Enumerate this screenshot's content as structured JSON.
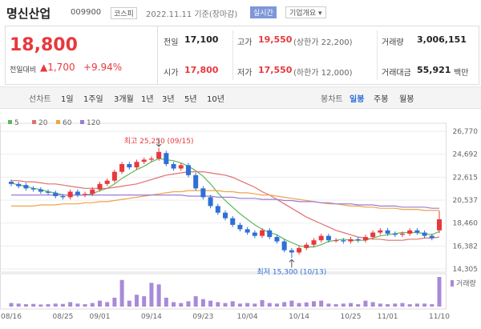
{
  "header": {
    "name": "명신산업",
    "code": "009900",
    "market": "코스피",
    "date": "2022.11.11 기준(장마감)",
    "realtime": "실시간",
    "company": "기업개요 ▾"
  },
  "quote": {
    "price": "18,800",
    "change_label": "전일대비",
    "change": "▲1,700",
    "change_pct": "+9.94%",
    "cells": [
      {
        "label": "전일",
        "value": "17,100"
      },
      {
        "label": "고가",
        "value": "19,550",
        "note": "(상한가 22,200)"
      },
      {
        "label": "거래량",
        "value": "3,006,151"
      },
      {
        "label": "시가",
        "value": "17,800"
      },
      {
        "label": "저가",
        "value": "17,550",
        "note": "(하한가 12,000)"
      },
      {
        "label": "거래대금",
        "value": "55,921",
        "unit": "백만"
      }
    ]
  },
  "tabs": {
    "line": [
      "선차트",
      "1일",
      "1주일",
      "3개월",
      "1년",
      "3년",
      "5년",
      "10년"
    ],
    "candle": [
      "봉차트",
      "일봉",
      "주봉",
      "월봉"
    ],
    "selected": "일봉"
  },
  "chart_data": {
    "type": "candlestick",
    "categories": [
      "08/16",
      null,
      null,
      null,
      null,
      null,
      null,
      "08/25",
      null,
      null,
      null,
      null,
      "09/01",
      null,
      null,
      null,
      null,
      null,
      null,
      "09/14",
      null,
      null,
      null,
      null,
      null,
      null,
      "09/23",
      null,
      null,
      null,
      null,
      null,
      "10/04",
      null,
      null,
      null,
      null,
      null,
      null,
      "10/14",
      null,
      null,
      null,
      null,
      null,
      null,
      "10/25",
      null,
      null,
      null,
      null,
      "11/01",
      null,
      null,
      null,
      null,
      null,
      null,
      "11/10"
    ],
    "open": [
      22200,
      22000,
      21900,
      21600,
      21500,
      21300,
      21200,
      20900,
      20800,
      21300,
      21000,
      21100,
      21500,
      22000,
      22300,
      23100,
      23800,
      23500,
      24000,
      24200,
      24300,
      24800,
      23800,
      23400,
      23700,
      22800,
      21600,
      20800,
      20000,
      19400,
      18900,
      18300,
      17900,
      17600,
      17300,
      17800,
      17200,
      16800,
      16000,
      15800,
      16200,
      16500,
      16900,
      17300,
      16900,
      16900,
      16800,
      17000,
      16900,
      17200,
      17600,
      17800,
      17500,
      17400,
      17500,
      17800,
      17600,
      17300,
      17800
    ],
    "high": [
      22400,
      22200,
      22100,
      21800,
      21700,
      21500,
      21400,
      21100,
      21500,
      21500,
      21300,
      21700,
      22200,
      22500,
      23300,
      24000,
      24000,
      24200,
      24400,
      24500,
      25250,
      25000,
      24000,
      23900,
      23900,
      23000,
      21800,
      21000,
      20200,
      19600,
      19100,
      18500,
      18100,
      17800,
      18000,
      18000,
      17400,
      17000,
      16200,
      16400,
      16700,
      17100,
      17500,
      17500,
      17100,
      17100,
      17200,
      17200,
      17400,
      17800,
      18000,
      18000,
      17700,
      17700,
      18000,
      18000,
      17800,
      17500,
      19550
    ],
    "low": [
      21800,
      21600,
      21400,
      21300,
      21100,
      21000,
      20700,
      20600,
      20600,
      20800,
      20800,
      20900,
      21300,
      21800,
      22100,
      22900,
      23300,
      23300,
      23800,
      24000,
      24100,
      23600,
      23200,
      23200,
      22600,
      21400,
      20600,
      19800,
      19200,
      18700,
      18100,
      17700,
      17400,
      17100,
      17100,
      17000,
      16600,
      15800,
      15300,
      15600,
      16000,
      16300,
      16700,
      16700,
      16700,
      16600,
      16600,
      16700,
      16700,
      17000,
      17400,
      17300,
      17200,
      17200,
      17300,
      17400,
      17100,
      16900,
      17550
    ],
    "close": [
      22000,
      21800,
      21600,
      21500,
      21300,
      21200,
      20900,
      20800,
      21300,
      21000,
      21100,
      21500,
      22000,
      22300,
      23100,
      23800,
      23500,
      24000,
      24200,
      24300,
      24900,
      23800,
      23400,
      23700,
      22800,
      21600,
      20800,
      20000,
      19400,
      18900,
      18300,
      17900,
      17600,
      17300,
      17800,
      17200,
      16800,
      16000,
      15800,
      16200,
      16500,
      16900,
      17300,
      16900,
      16900,
      16800,
      17000,
      16900,
      17200,
      17600,
      17800,
      17500,
      17400,
      17500,
      17800,
      17600,
      17300,
      17100,
      18800
    ],
    "volume": [
      12,
      10,
      8,
      9,
      7,
      8,
      10,
      9,
      15,
      10,
      8,
      12,
      20,
      15,
      30,
      90,
      20,
      40,
      35,
      80,
      75,
      30,
      15,
      12,
      18,
      35,
      25,
      20,
      15,
      12,
      18,
      10,
      12,
      10,
      22,
      12,
      10,
      15,
      20,
      12,
      14,
      18,
      20,
      10,
      8,
      10,
      12,
      8,
      20,
      15,
      10,
      8,
      10,
      12,
      8,
      10,
      10,
      8,
      100
    ],
    "volume_label": "거래량",
    "volume_color": "#a88ad8",
    "up_color": "#e8383d",
    "down_color": "#2f6fd6",
    "series": [
      {
        "name": "5",
        "color": "#5cb85c",
        "values": [
          22100,
          21900,
          21800,
          21600,
          21500,
          21300,
          21200,
          21000,
          21000,
          21000,
          21000,
          21100,
          21400,
          21600,
          22000,
          22500,
          22900,
          23300,
          23600,
          24000,
          24300,
          24200,
          24100,
          23900,
          23600,
          23200,
          22700,
          22000,
          21200,
          20500,
          19900,
          19300,
          18800,
          18300,
          17900,
          17600,
          17400,
          17000,
          16700,
          16400,
          16300,
          16300,
          16500,
          16800,
          16900,
          17000,
          16900,
          16900,
          16900,
          17100,
          17300,
          17400,
          17500,
          17600,
          17600,
          17600,
          17500,
          17400,
          17700
        ]
      },
      {
        "name": "20",
        "color": "#e07070",
        "values": [
          22300,
          22300,
          22200,
          22200,
          22100,
          22000,
          22000,
          21900,
          21800,
          21700,
          21600,
          21600,
          21600,
          21600,
          21700,
          21800,
          21900,
          22000,
          22200,
          22400,
          22600,
          22800,
          22900,
          23000,
          23100,
          23100,
          23100,
          23000,
          22900,
          22800,
          22600,
          22300,
          22000,
          21700,
          21300,
          21000,
          20600,
          20200,
          19800,
          19400,
          19000,
          18700,
          18400,
          18100,
          17800,
          17600,
          17400,
          17200,
          17100,
          17000,
          17000,
          16900,
          16900,
          16900,
          17000,
          17000,
          17100,
          17100,
          17200
        ]
      },
      {
        "name": "60",
        "color": "#f0a24a",
        "values": [
          20000,
          20000,
          20000,
          20000,
          20100,
          20100,
          20100,
          20200,
          20200,
          20200,
          20300,
          20300,
          20400,
          20400,
          20500,
          20600,
          20700,
          20800,
          20900,
          21000,
          21100,
          21200,
          21300,
          21300,
          21400,
          21400,
          21400,
          21400,
          21400,
          21300,
          21300,
          21200,
          21200,
          21100,
          21000,
          21000,
          20900,
          20800,
          20700,
          20600,
          20500,
          20400,
          20300,
          20200,
          20200,
          20100,
          20000,
          20000,
          19900,
          19900,
          19800,
          19800,
          19800,
          19700,
          19700,
          19700,
          19600,
          19600,
          19600
        ]
      },
      {
        "name": "120",
        "color": "#9b7bd4",
        "values": [
          21000,
          21000,
          21000,
          21000,
          21000,
          21000,
          21000,
          21000,
          21000,
          21000,
          21000,
          21000,
          21000,
          21000,
          21000,
          21000,
          21000,
          21000,
          21000,
          21000,
          21000,
          21000,
          21000,
          21000,
          20900,
          20900,
          20900,
          20900,
          20800,
          20800,
          20800,
          20700,
          20700,
          20700,
          20600,
          20600,
          20600,
          20500,
          20500,
          20400,
          20400,
          20400,
          20300,
          20300,
          20200,
          20200,
          20200,
          20100,
          20100,
          20100,
          20000,
          20000,
          20000,
          19900,
          19900,
          19900,
          19900,
          19800,
          19800
        ]
      }
    ],
    "annotations": [
      "최고 25,250 (09/15)",
      "최저 15,300 (10/13)"
    ],
    "ylim": [
      14305,
      26770
    ],
    "yticks": [
      {
        "value": 26770,
        "label": "26,770"
      },
      {
        "value": 24692,
        "label": "24,692"
      },
      {
        "value": 22615,
        "label": "22,615"
      },
      {
        "value": 20537,
        "label": "20,537"
      },
      {
        "value": 18460,
        "label": "18,460"
      },
      {
        "value": 16382,
        "label": "16,382"
      },
      {
        "value": 14305,
        "label": "14,305"
      }
    ],
    "grid": true
  }
}
